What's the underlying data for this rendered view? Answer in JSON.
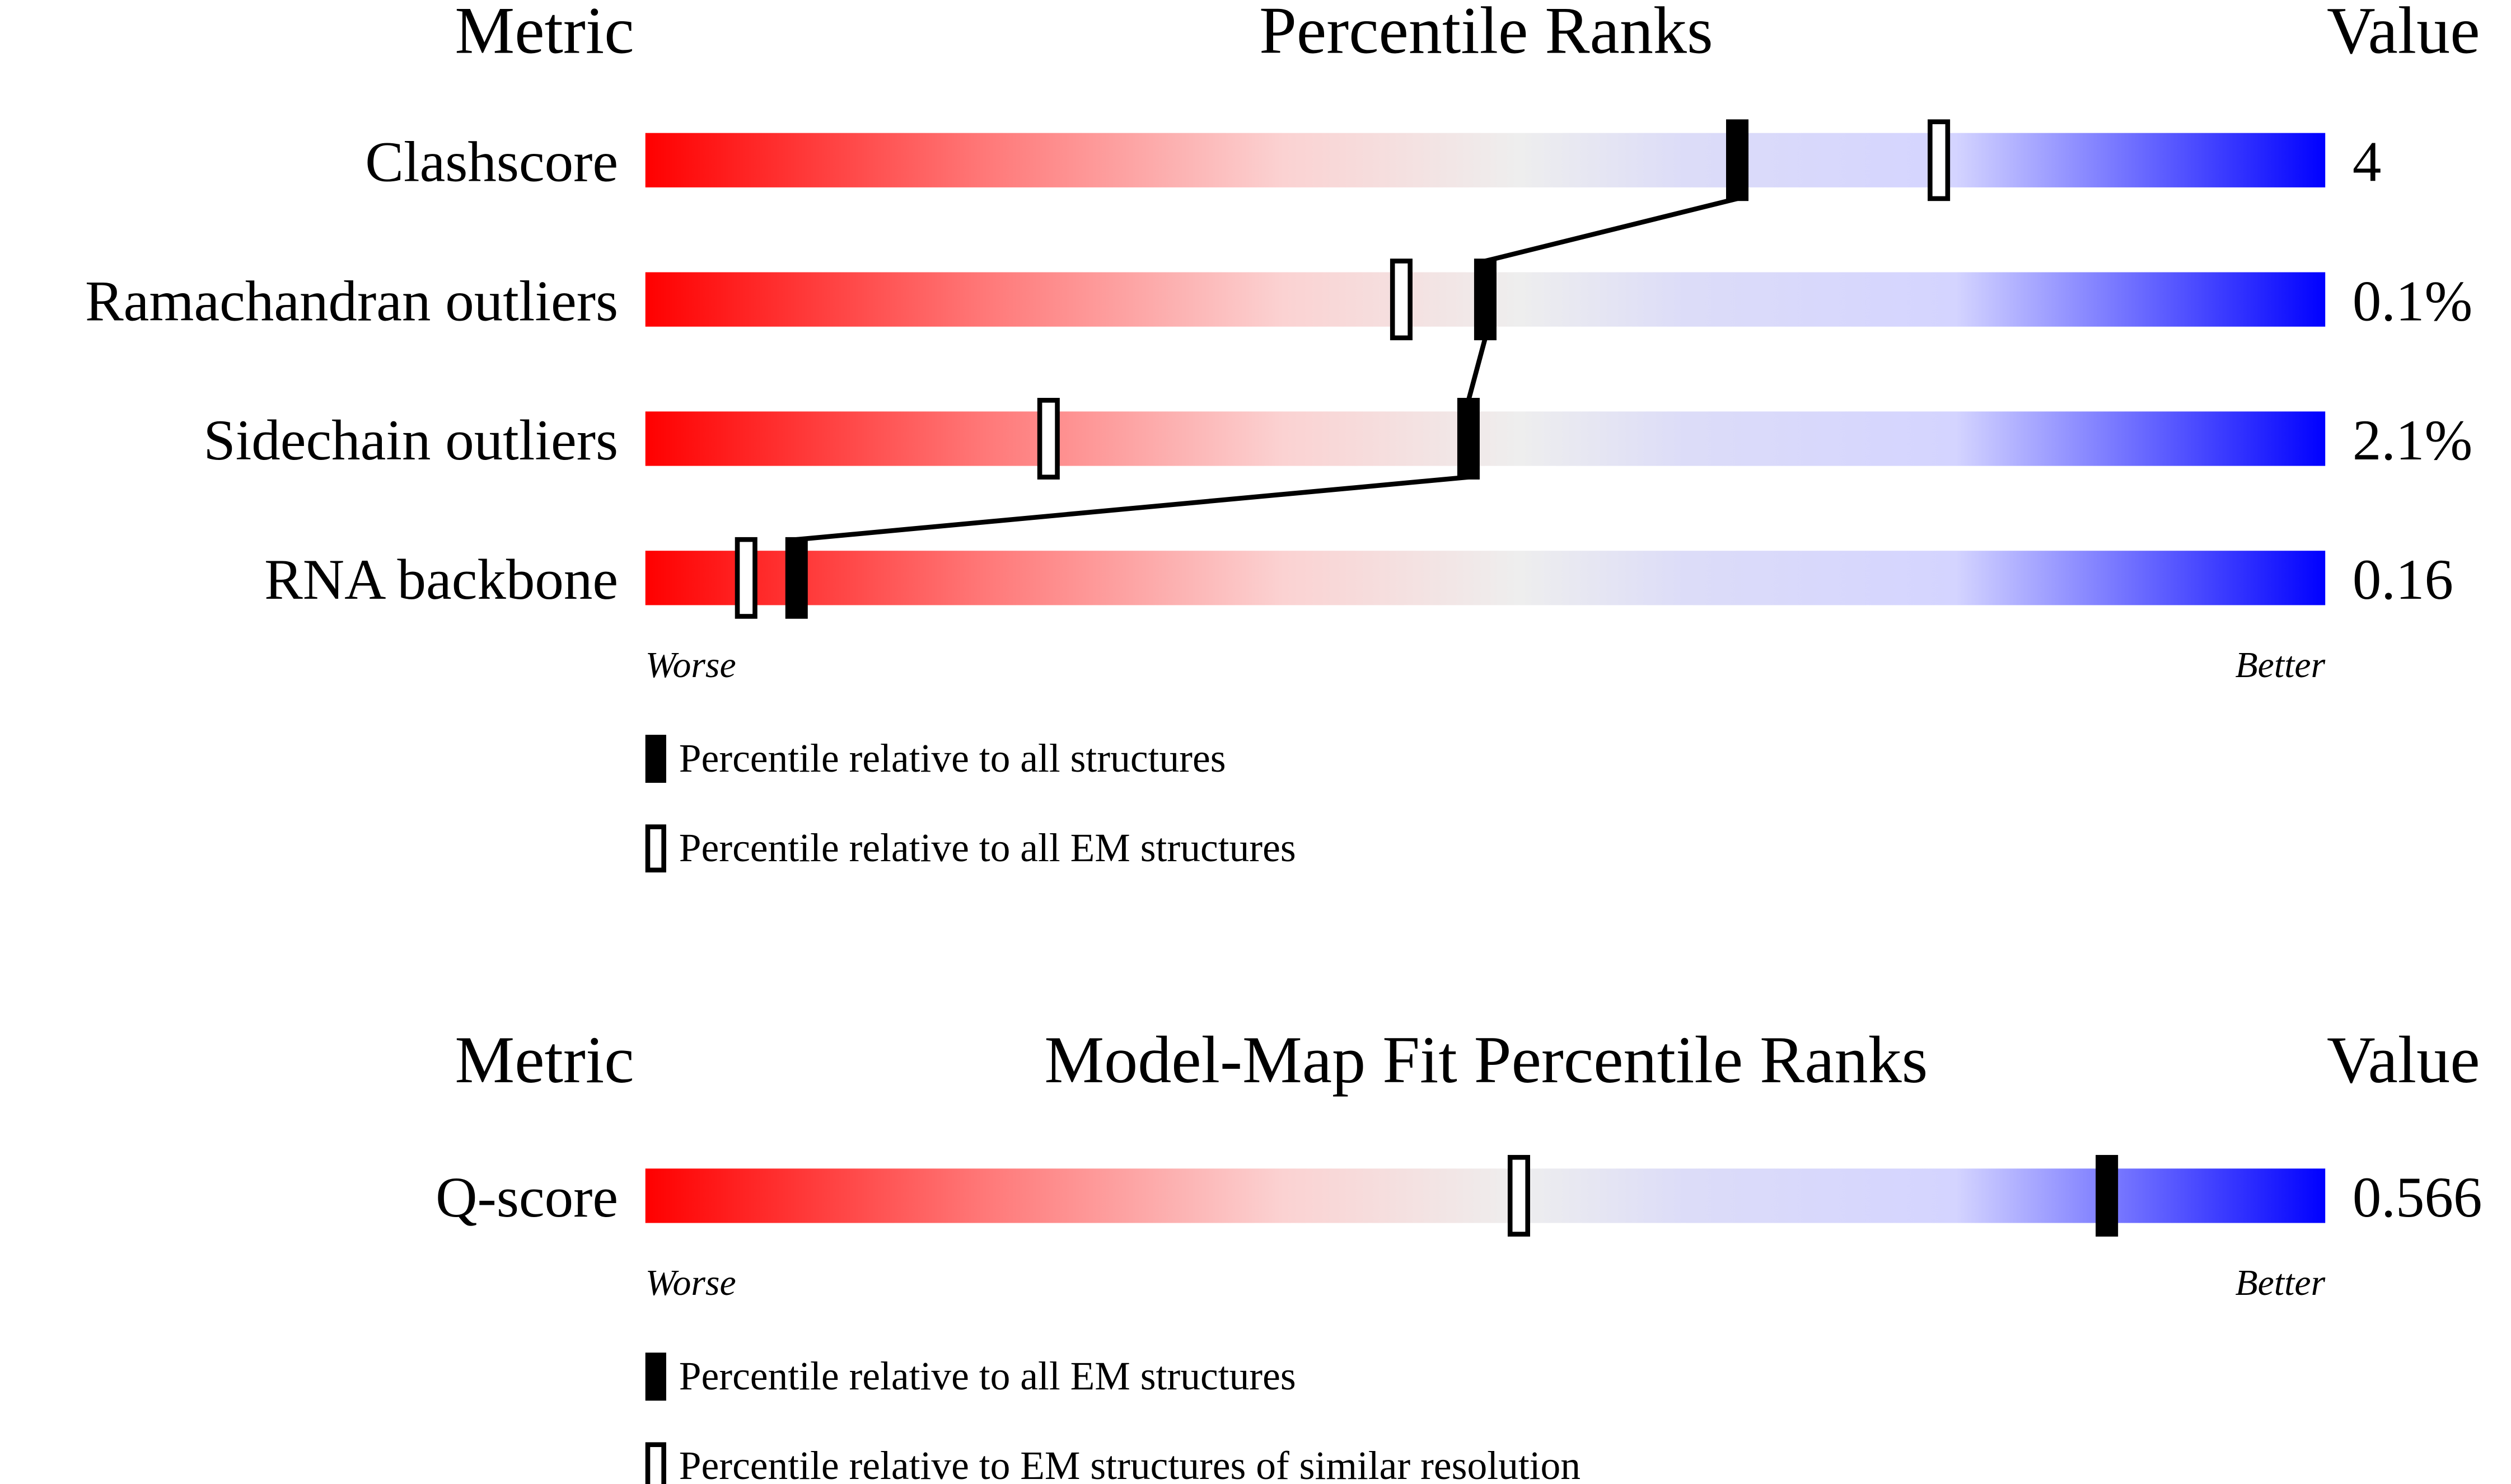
{
  "chart_data": [
    {
      "type": "slider",
      "metric_header": "Metric",
      "title": "Percentile Ranks",
      "value_header": "Value",
      "categories": [
        "Clashscore",
        "Ramachandran outliers",
        "Sidechain outliers",
        "RNA backbone"
      ],
      "metric_values": [
        "4",
        "0.1%",
        "2.1%",
        "0.16"
      ],
      "xlim": [
        0,
        100
      ],
      "low_label": "Worse",
      "high_label": "Better",
      "connect_first_series": true,
      "series": [
        {
          "name": "Percentile relative to all structures",
          "color": "#000000",
          "values": [
            65,
            50,
            49,
            9
          ]
        },
        {
          "name": "Percentile relative to all EM structures",
          "color": "#ffffff",
          "values": [
            77,
            45,
            24,
            6
          ]
        }
      ]
    },
    {
      "type": "slider",
      "metric_header": "Metric",
      "title": "Model-Map Fit Percentile Ranks",
      "value_header": "Value",
      "categories": [
        "Q-score"
      ],
      "metric_values": [
        "0.566"
      ],
      "xlim": [
        0,
        100
      ],
      "low_label": "Worse",
      "high_label": "Better",
      "connect_first_series": true,
      "series": [
        {
          "name": "Percentile relative to all EM structures",
          "color": "#000000",
          "values": [
            87
          ]
        },
        {
          "name": "Percentile relative to EM structures of similar resolution",
          "color": "#ffffff",
          "values": [
            52
          ]
        }
      ]
    }
  ]
}
